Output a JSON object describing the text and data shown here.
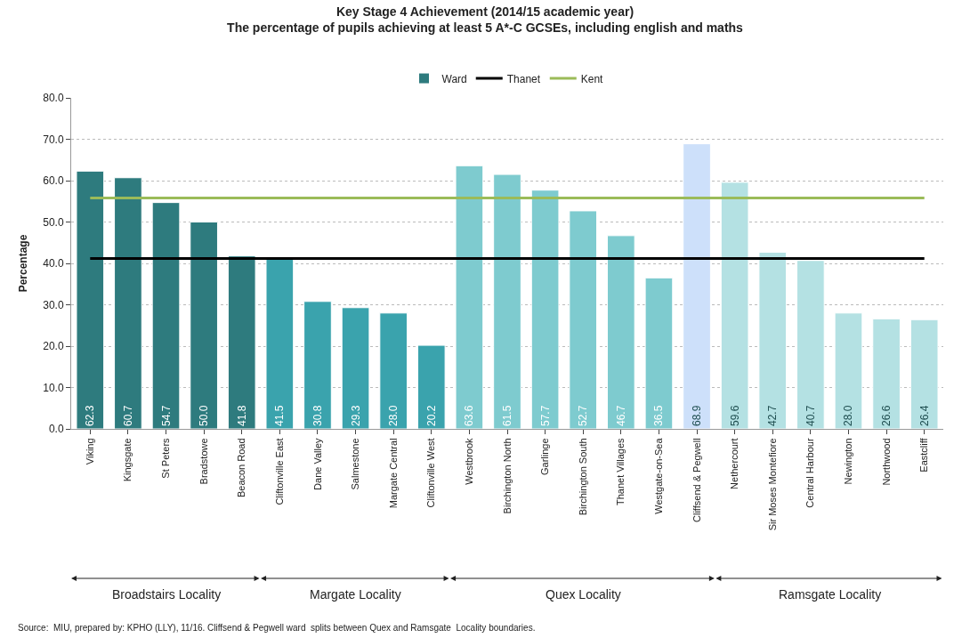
{
  "chart_data": {
    "type": "bar",
    "title": "Key Stage 4 Achievement (2014/15 academic year)",
    "subtitle": "The percentage of pupils achieving at least 5 A*-C GCSEs, including english and maths",
    "ylabel": "Percentage",
    "categories": [
      "Viking",
      "Kingsgate",
      "St Peters",
      "Bradstowe",
      "Beacon Road",
      "Cliftonville East",
      "Dane Valley",
      "Salmestone",
      "Margate Central",
      "Cliftonville West",
      "Westbrook",
      "Birchington North",
      "Garlinge",
      "Birchington South",
      "Thanet Villages",
      "Westgate-on-Sea",
      "Cliffsend & Pegwell",
      "Nethercourt",
      "Sir Moses Montefiore",
      "Central Harbour",
      "Newington",
      "Northwood",
      "Eastcliff"
    ],
    "series": [
      {
        "name": "Ward",
        "color": "#2e7b7e",
        "colors": [
          "#2e7b7e",
          "#2e7b7e",
          "#2e7b7e",
          "#2e7b7e",
          "#2e7b7e",
          "#3aa3ad",
          "#3aa3ad",
          "#3aa3ad",
          "#3aa3ad",
          "#3aa3ad",
          "#7ecbcf",
          "#7ecbcf",
          "#7ecbcf",
          "#7ecbcf",
          "#7ecbcf",
          "#7ecbcf",
          "#cde0fa",
          "#b4e1e3",
          "#b4e1e3",
          "#b4e1e3",
          "#b4e1e3",
          "#b4e1e3",
          "#b4e1e3"
        ],
        "values": [
          62.3,
          60.7,
          54.7,
          50.0,
          41.8,
          41.5,
          30.8,
          29.3,
          28.0,
          20.2,
          63.6,
          61.5,
          57.7,
          52.7,
          46.7,
          36.5,
          68.9,
          59.6,
          42.7,
          40.7,
          28.0,
          26.6,
          26.4
        ],
        "value_labels": [
          "62.3",
          "60.7",
          "54.7",
          "50.0",
          "41.8",
          "41.5",
          "30.8",
          "29.3",
          "28.0",
          "20.2",
          "63.6",
          "61.5",
          "57.7",
          "52.7",
          "46.7",
          "36.5",
          "68.9",
          "59.6",
          "42.7",
          "40.7",
          "28.0",
          "26.6",
          "26.4"
        ]
      },
      {
        "name": "Thanet",
        "type": "line",
        "color": "#000000",
        "values": [
          41.2,
          41.2,
          41.2,
          41.2,
          41.2,
          41.2,
          41.2,
          41.2,
          41.2,
          41.2,
          41.2,
          41.2,
          41.2,
          41.2,
          41.2,
          41.2,
          41.2,
          41.2,
          41.2,
          41.2,
          41.2,
          41.2,
          41.2
        ]
      },
      {
        "name": "Kent",
        "type": "line",
        "color": "#9bbb59",
        "values": [
          55.8,
          55.8,
          55.8,
          55.8,
          55.8,
          55.8,
          55.8,
          55.8,
          55.8,
          55.8,
          55.8,
          55.8,
          55.8,
          55.8,
          55.8,
          55.8,
          55.8,
          55.8,
          55.8,
          55.8,
          55.8,
          55.8,
          55.8
        ]
      }
    ],
    "ylim": [
      0,
      80
    ],
    "yticks": [
      {
        "value": 0,
        "label": "0.0"
      },
      {
        "value": 10,
        "label": "10.0"
      },
      {
        "value": 20,
        "label": "20.0"
      },
      {
        "value": 30,
        "label": "30.0"
      },
      {
        "value": 40,
        "label": "40.0"
      },
      {
        "value": 50,
        "label": "50.0"
      },
      {
        "value": 60,
        "label": "60.0"
      },
      {
        "value": 70,
        "label": "70.0"
      },
      {
        "value": 80,
        "label": "80.0"
      }
    ],
    "grid": "y",
    "legend": "top",
    "annotations": [
      "Broadstairs Locality",
      "Margate Locality",
      "Quex Locality",
      "Ramsgate Locality",
      "Source:  MIU, prepared by: KPHO (LLY), 11/16. Cliffsend & Pegwell ward  splits between Quex and Ramsgate  Locality boundaries."
    ]
  }
}
